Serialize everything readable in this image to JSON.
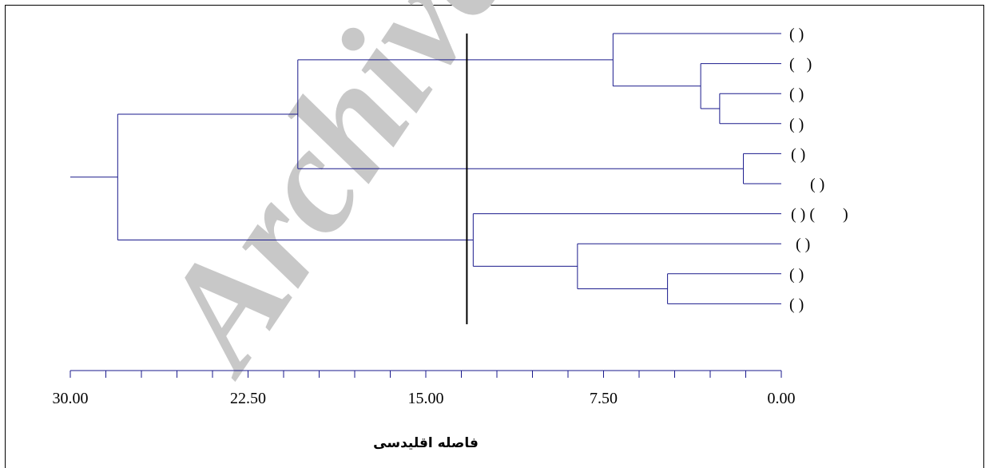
{
  "chart_data": {
    "type": "dendrogram",
    "xlabel": "فاصله اقلیدسی",
    "xlim": [
      30,
      0
    ],
    "x_ticks": [
      "30.00",
      "22.50",
      "15.00",
      "7.50",
      "0.00"
    ],
    "leaves": [
      {
        "label": "( )"
      },
      {
        "label": "(   )"
      },
      {
        "label": "( )"
      },
      {
        "label": "( )"
      },
      {
        "label": "( )"
      },
      {
        "label": "( )"
      },
      {
        "label": "( ) (       )"
      },
      {
        "label": "( )"
      },
      {
        "label": "( )"
      },
      {
        "label": "( )"
      }
    ],
    "merges": [
      {
        "id": "a",
        "children": [
          2,
          3
        ],
        "height": 2.6
      },
      {
        "id": "b",
        "children": [
          1,
          "a"
        ],
        "height": 3.4
      },
      {
        "id": "c",
        "children": [
          0,
          "b"
        ],
        "height": 7.1
      },
      {
        "id": "d",
        "children": [
          4,
          5
        ],
        "height": 1.6
      },
      {
        "id": "e",
        "children": [
          "c",
          "d"
        ],
        "height": 20.4
      },
      {
        "id": "f",
        "children": [
          8,
          9
        ],
        "height": 4.8
      },
      {
        "id": "g",
        "children": [
          7,
          "f"
        ],
        "height": 8.6
      },
      {
        "id": "h",
        "children": [
          6,
          "g"
        ],
        "height": 13.0
      },
      {
        "id": "root",
        "children": [
          "e",
          "h"
        ],
        "height": 28.0
      }
    ],
    "root_stub_height": 30.0,
    "cut_height": 13.2,
    "colors": {
      "branches": "#1a1a8c",
      "axis": "#1a1a8c",
      "cut_line": "#000000",
      "watermark": "#c8c8c8"
    }
  },
  "watermark": "Archive"
}
